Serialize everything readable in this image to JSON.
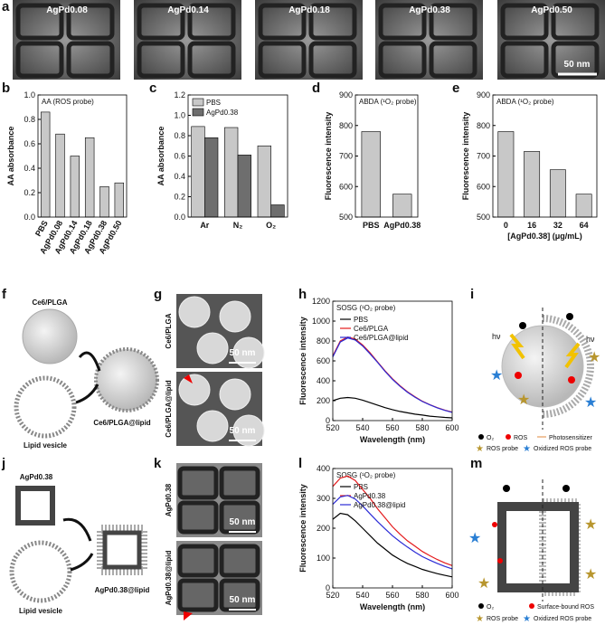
{
  "panel_letters": [
    "a",
    "b",
    "c",
    "d",
    "e",
    "f",
    "g",
    "h",
    "i",
    "j",
    "k",
    "l",
    "m"
  ],
  "micrographs": {
    "a": {
      "labels": [
        "AgPd0.08",
        "AgPd0.14",
        "AgPd0.18",
        "AgPd0.38",
        "AgPd0.50"
      ],
      "scale_bar": "50 nm"
    },
    "g": {
      "labels": [
        "Ce6/PLGA",
        "Ce6/PLGA@lipid"
      ],
      "scale_bars": [
        "50 nm",
        "50 nm"
      ]
    },
    "k": {
      "labels": [
        "AgPd0.38",
        "AgPd0.38@lipid"
      ],
      "scale_bars": [
        "50 nm",
        "50 nm"
      ]
    }
  },
  "diagrams": {
    "f": {
      "labels": [
        "Ce6/PLGA",
        "Lipid vesicle",
        "Ce6/PLGA@lipid"
      ]
    },
    "i": {
      "light": [
        "hν",
        "hν"
      ],
      "legend": [
        "O₂",
        "ROS",
        "Photosensitizer",
        "ROS probe",
        "Oxidized ROS probe"
      ]
    },
    "j": {
      "labels": [
        "AgPd0.38",
        "Lipid vesicle",
        "AgPd0.38@lipid"
      ]
    },
    "m": {
      "legend": [
        "O₂",
        "Surface-bound ROS",
        "ROS probe",
        "Oxidized ROS probe"
      ]
    }
  },
  "chart_data": [
    {
      "type": "bar",
      "title": "AA (ROS probe)",
      "ylabel": "AA absorbance",
      "categories": [
        "PBS",
        "AgPd0.08",
        "AgPd0.14",
        "AgPd0.18",
        "AgPd0.38",
        "AgPd0.50"
      ],
      "values": [
        0.86,
        0.68,
        0.5,
        0.65,
        0.25,
        0.28
      ],
      "color": "#c8c8c8",
      "ylim": [
        0,
        1.0
      ],
      "yticks": [
        {
          "value": 0,
          "label": "0.0"
        },
        0.2,
        0.4,
        0.6,
        0.8,
        {
          "value": 1,
          "label": "1.0"
        }
      ]
    },
    {
      "type": "bar",
      "ylabel": "AA absorbance",
      "categories": [
        "Ar",
        "N₂",
        "O₂"
      ],
      "series": [
        {
          "name": "PBS",
          "color": "#c8c8c8",
          "values": [
            0.89,
            0.88,
            0.7
          ]
        },
        {
          "name": "AgPd0.38",
          "color": "#6e6e6e",
          "values": [
            0.78,
            0.61,
            0.12
          ]
        }
      ],
      "legend": "upper left",
      "ylim": [
        0,
        1.2
      ],
      "yticks": [
        {
          "value": 0,
          "label": "0.0"
        },
        0.2,
        0.4,
        0.6,
        0.8,
        {
          "value": 1,
          "label": "1.0"
        },
        1.2
      ]
    },
    {
      "type": "bar",
      "title": "ABDA (¹O₂ probe)",
      "ylabel": "Fluorescence intensity",
      "categories": [
        "PBS",
        "AgPd0.38"
      ],
      "values": [
        780,
        575
      ],
      "color": "#c8c8c8",
      "ylim": [
        500,
        900
      ],
      "yticks": [
        500,
        600,
        700,
        800,
        900
      ]
    },
    {
      "type": "bar",
      "title": "ABDA (¹O₂ probe)",
      "ylabel": "Fluorescence intensity",
      "xlabel": "[AgPd0.38] (μg/mL)",
      "categories": [
        "0",
        "16",
        "32",
        "64"
      ],
      "values": [
        780,
        715,
        655,
        575
      ],
      "color": "#c8c8c8",
      "ylim": [
        500,
        900
      ],
      "yticks": [
        500,
        600,
        700,
        800,
        900
      ]
    },
    {
      "type": "line",
      "title": "SOSG (¹O₂ probe)",
      "xlabel": "Wavelength (nm)",
      "ylabel": "Fluorescence intensity",
      "legend": "upper left",
      "x": [
        520,
        525,
        530,
        535,
        540,
        545,
        550,
        555,
        560,
        565,
        570,
        575,
        580,
        585,
        590,
        595,
        600
      ],
      "series": [
        {
          "name": "PBS",
          "color": "#000000",
          "values": [
            200,
            225,
            232,
            225,
            205,
            180,
            155,
            130,
            110,
            92,
            78,
            65,
            55,
            45,
            38,
            32,
            27
          ]
        },
        {
          "name": "Ce6/PLGA",
          "color": "#e41a1c",
          "values": [
            650,
            800,
            840,
            820,
            760,
            680,
            590,
            500,
            420,
            350,
            290,
            240,
            195,
            160,
            130,
            105,
            85
          ]
        },
        {
          "name": "Ce6/PLGA@lipid",
          "color": "#2b2bd6",
          "values": [
            640,
            790,
            830,
            810,
            750,
            670,
            585,
            495,
            415,
            345,
            285,
            235,
            192,
            158,
            128,
            103,
            83
          ]
        }
      ],
      "xlim": [
        520,
        600
      ],
      "xticks": [
        520,
        540,
        560,
        580,
        600
      ],
      "ylim": [
        0,
        1200
      ],
      "yticks": [
        0,
        200,
        400,
        600,
        800,
        1000,
        1200
      ]
    },
    {
      "type": "line",
      "title": "SOSG (¹O₂ probe)",
      "xlabel": "Wavelength (nm)",
      "ylabel": "Fluorescence intensity",
      "legend": "upper left",
      "x": [
        520,
        525,
        530,
        535,
        540,
        545,
        550,
        555,
        560,
        565,
        570,
        575,
        580,
        585,
        590,
        595,
        600
      ],
      "series": [
        {
          "name": "PBS",
          "color": "#000000",
          "values": [
            230,
            250,
            245,
            225,
            200,
            175,
            150,
            130,
            110,
            95,
            82,
            72,
            62,
            55,
            48,
            42,
            37
          ]
        },
        {
          "name": "AgPd0.38",
          "color": "#e41a1c",
          "values": [
            340,
            368,
            375,
            360,
            330,
            300,
            265,
            235,
            205,
            180,
            158,
            140,
            122,
            108,
            95,
            84,
            75
          ]
        },
        {
          "name": "AgPd0.38@lipid",
          "color": "#2b2bd6",
          "values": [
            280,
            305,
            310,
            298,
            275,
            248,
            222,
            198,
            175,
            155,
            137,
            120,
            105,
            93,
            82,
            72,
            64
          ]
        }
      ],
      "xlim": [
        520,
        600
      ],
      "xticks": [
        520,
        540,
        560,
        580,
        600
      ],
      "ylim": [
        0,
        400
      ],
      "yticks": [
        0,
        100,
        200,
        300,
        400
      ]
    }
  ]
}
